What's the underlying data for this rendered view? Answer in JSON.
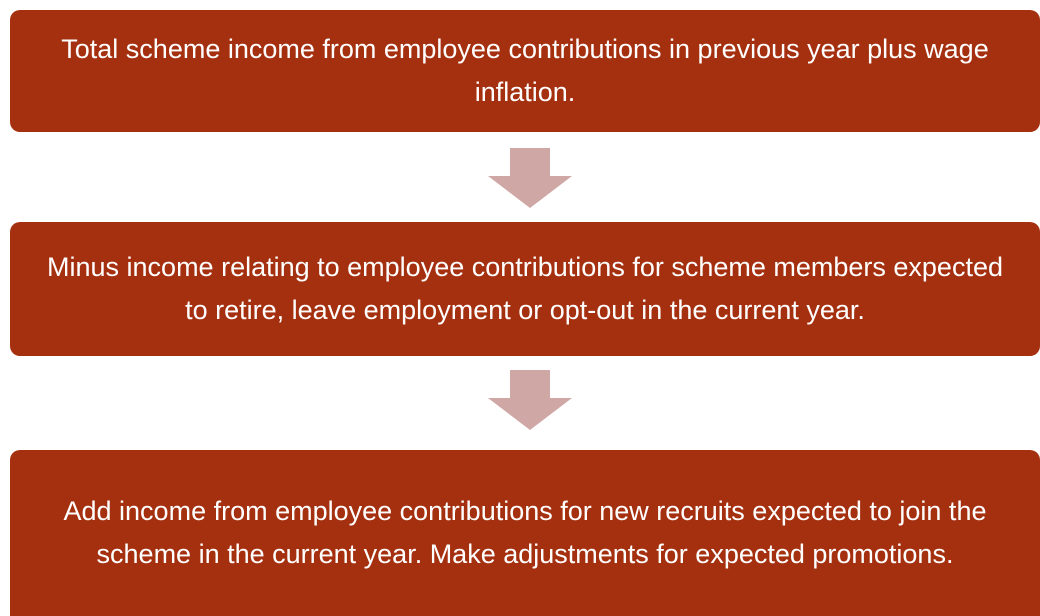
{
  "nodes": [
    {
      "label": "Total scheme income from employee contributions in previous year plus wage inflation."
    },
    {
      "label": "Minus income relating to employee contributions for scheme members expected to retire, leave employment or opt-out in the current year."
    },
    {
      "label": "Add income from employee contributions for new recruits expected to join the scheme in the current year.  Make adjustments for expected promotions."
    }
  ]
}
